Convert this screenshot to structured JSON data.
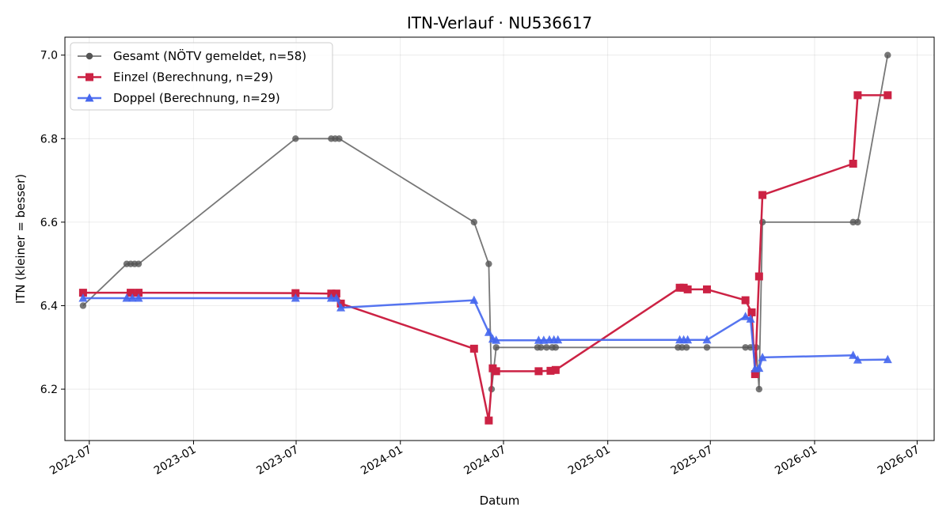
{
  "chart_data": {
    "type": "line",
    "title": "ITN-Verlauf · NU536617",
    "xlabel": "Datum",
    "ylabel": "ITN  (kleiner = besser)",
    "x_ticks": [
      "2022-07",
      "2023-01",
      "2023-07",
      "2024-01",
      "2024-07",
      "2025-01",
      "2025-07",
      "2026-01",
      "2026-07"
    ],
    "y_ticks": [
      "6.2",
      "6.4",
      "6.6",
      "6.8",
      "7.0"
    ],
    "xlim": [
      "2022-05-19",
      "2026-07-31"
    ],
    "ylim": [
      6.077,
      7.043
    ],
    "grid": true,
    "legend_position": "top-left",
    "series": [
      {
        "name": "Gesamt (NÖTV gemeldet, n=58)",
        "color": "#555555",
        "marker": "circle",
        "points": [
          [
            "2022-06-20",
            6.4
          ],
          [
            "2022-09-05",
            6.5
          ],
          [
            "2022-09-12",
            6.5
          ],
          [
            "2022-09-19",
            6.5
          ],
          [
            "2022-09-26",
            6.5
          ],
          [
            "2023-06-30",
            6.8
          ],
          [
            "2023-09-01",
            6.8
          ],
          [
            "2023-09-08",
            6.8
          ],
          [
            "2023-09-15",
            6.8
          ],
          [
            "2024-05-10",
            6.6
          ],
          [
            "2024-06-05",
            6.5
          ],
          [
            "2024-06-10",
            6.2
          ],
          [
            "2024-06-18",
            6.3
          ],
          [
            "2024-08-30",
            6.3
          ],
          [
            "2024-09-05",
            6.3
          ],
          [
            "2024-09-15",
            6.3
          ],
          [
            "2024-09-25",
            6.3
          ],
          [
            "2024-10-01",
            6.3
          ],
          [
            "2025-05-05",
            6.3
          ],
          [
            "2025-05-12",
            6.3
          ],
          [
            "2025-05-20",
            6.3
          ],
          [
            "2025-06-25",
            6.3
          ],
          [
            "2025-09-01",
            6.3
          ],
          [
            "2025-09-10",
            6.3
          ],
          [
            "2025-09-20",
            6.3
          ],
          [
            "2025-09-25",
            6.2
          ],
          [
            "2025-10-01",
            6.6
          ],
          [
            "2026-03-10",
            6.6
          ],
          [
            "2026-03-18",
            6.6
          ],
          [
            "2026-05-10",
            7.0
          ]
        ]
      },
      {
        "name": "Einzel (Berechnung, n=29)",
        "color": "#cc2244",
        "marker": "square",
        "points": [
          [
            "2022-06-20",
            6.431
          ],
          [
            "2022-09-12",
            6.431
          ],
          [
            "2022-09-26",
            6.431
          ],
          [
            "2023-06-30",
            6.43
          ],
          [
            "2023-09-01",
            6.429
          ],
          [
            "2023-09-10",
            6.429
          ],
          [
            "2023-09-18",
            6.405
          ],
          [
            "2024-05-10",
            6.297
          ],
          [
            "2024-06-05",
            6.125
          ],
          [
            "2024-06-12",
            6.25
          ],
          [
            "2024-06-18",
            6.243
          ],
          [
            "2024-09-01",
            6.243
          ],
          [
            "2024-09-22",
            6.244
          ],
          [
            "2024-10-01",
            6.246
          ],
          [
            "2025-05-08",
            6.443
          ],
          [
            "2025-05-15",
            6.443
          ],
          [
            "2025-05-22",
            6.439
          ],
          [
            "2025-06-25",
            6.439
          ],
          [
            "2025-09-01",
            6.413
          ],
          [
            "2025-09-12",
            6.384
          ],
          [
            "2025-09-18",
            6.236
          ],
          [
            "2025-09-25",
            6.47
          ],
          [
            "2025-10-01",
            6.665
          ],
          [
            "2026-03-10",
            6.74
          ],
          [
            "2026-03-18",
            6.904
          ],
          [
            "2026-05-10",
            6.904
          ]
        ]
      },
      {
        "name": "Doppel (Berechnung, n=29)",
        "color": "#4466ee",
        "marker": "triangle",
        "points": [
          [
            "2022-06-20",
            6.418
          ],
          [
            "2022-09-05",
            6.418
          ],
          [
            "2022-09-15",
            6.418
          ],
          [
            "2022-09-26",
            6.418
          ],
          [
            "2023-06-30",
            6.418
          ],
          [
            "2023-09-01",
            6.418
          ],
          [
            "2023-09-10",
            6.418
          ],
          [
            "2023-09-18",
            6.395
          ],
          [
            "2024-05-10",
            6.413
          ],
          [
            "2024-06-05",
            6.336
          ],
          [
            "2024-06-12",
            6.32
          ],
          [
            "2024-06-18",
            6.317
          ],
          [
            "2024-09-01",
            6.317
          ],
          [
            "2024-09-10",
            6.317
          ],
          [
            "2024-09-20",
            6.318
          ],
          [
            "2024-09-28",
            6.318
          ],
          [
            "2024-10-05",
            6.318
          ],
          [
            "2025-05-08",
            6.318
          ],
          [
            "2025-05-15",
            6.318
          ],
          [
            "2025-05-22",
            6.318
          ],
          [
            "2025-06-25",
            6.318
          ],
          [
            "2025-09-01",
            6.374
          ],
          [
            "2025-09-10",
            6.368
          ],
          [
            "2025-09-18",
            6.249
          ],
          [
            "2025-09-25",
            6.25
          ],
          [
            "2025-10-01",
            6.276
          ],
          [
            "2026-03-10",
            6.281
          ],
          [
            "2026-03-18",
            6.27
          ],
          [
            "2026-05-10",
            6.271
          ]
        ]
      }
    ]
  }
}
